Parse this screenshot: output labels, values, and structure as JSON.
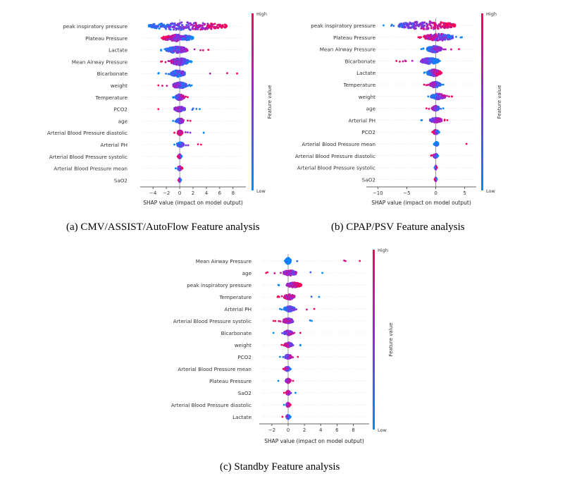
{
  "colors": {
    "high": "#ff0052",
    "low": "#008bfb",
    "mid": "#8a2be2",
    "axis": "#333333",
    "zero": "#999999"
  },
  "chart_data": [
    {
      "type": "scatter",
      "subtype": "shap-beeswarm",
      "caption": "(a)  CMV/ASSIST/AutoFlow Feature analysis",
      "xlabel": "SHAP value (impact on model output)",
      "xticks": [
        -4,
        -2,
        0,
        2,
        4,
        6,
        8
      ],
      "xtick_labels": [
        "−4",
        "−2",
        "0",
        "2",
        "4",
        "6",
        "8"
      ],
      "xlim": [
        -5.5,
        9.5
      ],
      "colorbar": {
        "label": "Feature value",
        "high": "High",
        "low": "Low"
      },
      "features": [
        {
          "name": "peak inspiratory pressure",
          "min": -4.6,
          "max": 7.0,
          "core": [
            -4.6,
            7.0
          ],
          "density": 2.2
        },
        {
          "name": "Plateau Pressure",
          "min": -2.7,
          "max": 2.0,
          "core": [
            -2.5,
            2.0
          ],
          "density": 1.6
        },
        {
          "name": "Lactate",
          "min": -2.8,
          "max": 4.3,
          "core": [
            -2.0,
            1.2
          ],
          "density": 1.5
        },
        {
          "name": "Mean Airway Pressure",
          "min": -2.8,
          "max": 1.8,
          "core": [
            -1.3,
            1.3
          ],
          "density": 1.8
        },
        {
          "name": "Bicarbonate",
          "min": -3.2,
          "max": 8.6,
          "core": [
            -1.3,
            0.8
          ],
          "density": 1.6
        },
        {
          "name": "weight",
          "min": -3.2,
          "max": 1.8,
          "core": [
            -1.0,
            1.0
          ],
          "density": 1.4
        },
        {
          "name": "Temperature",
          "min": -1.0,
          "max": 1.2,
          "core": [
            -0.6,
            0.6
          ],
          "density": 1.2
        },
        {
          "name": "PCO2",
          "min": -3.2,
          "max": 3.0,
          "core": [
            -0.8,
            0.8
          ],
          "density": 0.8
        },
        {
          "name": "age",
          "min": -1.0,
          "max": 1.6,
          "core": [
            -0.5,
            0.6
          ],
          "density": 0.8
        },
        {
          "name": "Arterial Blood Pressure diastolic",
          "min": -0.8,
          "max": 3.6,
          "core": [
            -0.3,
            0.4
          ],
          "density": 0.7
        },
        {
          "name": "Arterial PH",
          "min": -0.8,
          "max": 3.2,
          "core": [
            -0.4,
            0.6
          ],
          "density": 0.7
        },
        {
          "name": "Arterial Blood Pressure systolic",
          "min": -0.3,
          "max": 0.3,
          "core": [
            -0.2,
            0.2
          ],
          "density": 0.4
        },
        {
          "name": "Arterial Blood Pressure mean",
          "min": -0.6,
          "max": 0.4,
          "core": [
            -0.3,
            0.3
          ],
          "density": 0.4
        },
        {
          "name": "SaO2",
          "min": -0.2,
          "max": 0.2,
          "core": [
            -0.1,
            0.1
          ],
          "density": 0.3
        }
      ]
    },
    {
      "type": "scatter",
      "subtype": "shap-beeswarm",
      "caption": "(b)  CPAP/PSV Feature analysis",
      "xlabel": "SHAP value (impact on model output)",
      "xticks": [
        -10,
        -5,
        0,
        5
      ],
      "xtick_labels": [
        "−10",
        "−5",
        "0",
        "5"
      ],
      "xlim": [
        -11.5,
        6.5
      ],
      "colorbar": {
        "label": "Feature value",
        "high": "High",
        "low": "Low"
      },
      "features": [
        {
          "name": "peak inspiratory pressure",
          "min": -9.0,
          "max": 3.3,
          "core": [
            -6.5,
            3.3
          ],
          "density": 2.2
        },
        {
          "name": "Plateau Pressure",
          "min": -3.0,
          "max": 4.5,
          "core": [
            -2.0,
            3.0
          ],
          "density": 1.7
        },
        {
          "name": "Mean Airway Pressure",
          "min": -2.5,
          "max": 4.0,
          "core": [
            -1.5,
            1.0
          ],
          "density": 1.5
        },
        {
          "name": "Bicarbonate",
          "min": -6.8,
          "max": 0.7,
          "core": [
            -2.5,
            0.5
          ],
          "density": 1.4
        },
        {
          "name": "Lactate",
          "min": -2.0,
          "max": 1.0,
          "core": [
            -1.5,
            0.8
          ],
          "density": 1.6
        },
        {
          "name": "Temperature",
          "min": -2.0,
          "max": 1.3,
          "core": [
            -1.0,
            0.8
          ],
          "density": 1.1
        },
        {
          "name": "weight",
          "min": -1.3,
          "max": 2.8,
          "core": [
            -0.8,
            1.6
          ],
          "density": 1.1
        },
        {
          "name": "age",
          "min": -1.6,
          "max": 1.3,
          "core": [
            -0.6,
            0.6
          ],
          "density": 0.8
        },
        {
          "name": "Arterial PH",
          "min": -2.5,
          "max": 2.0,
          "core": [
            -1.0,
            1.0
          ],
          "density": 0.8
        },
        {
          "name": "PCO2",
          "min": -0.6,
          "max": 0.6,
          "core": [
            -0.4,
            0.4
          ],
          "density": 0.7
        },
        {
          "name": "Arterial Blood Pressure mean",
          "min": -0.3,
          "max": 5.3,
          "core": [
            -0.2,
            0.4
          ],
          "density": 0.5
        },
        {
          "name": "Arterial Blood Pressure diastolic",
          "min": -0.8,
          "max": 0.4,
          "core": [
            -0.4,
            0.3
          ],
          "density": 0.5
        },
        {
          "name": "Arterial Blood Pressure systolic",
          "min": -0.2,
          "max": 0.2,
          "core": [
            -0.1,
            0.1
          ],
          "density": 0.3
        },
        {
          "name": "SaO2",
          "min": -0.2,
          "max": 0.2,
          "core": [
            -0.1,
            0.1
          ],
          "density": 0.3
        }
      ]
    },
    {
      "type": "scatter",
      "subtype": "shap-beeswarm",
      "caption": "(c)  Standby Feature analysis",
      "xlabel": "SHAP value (impact on model output)",
      "xticks": [
        -2,
        0,
        2,
        4,
        6,
        8
      ],
      "xtick_labels": [
        "−2",
        "0",
        "2",
        "4",
        "6",
        "8"
      ],
      "xlim": [
        -3.2,
        9.6
      ],
      "colorbar": {
        "label": "Feature value",
        "high": "High",
        "low": "Low"
      },
      "features": [
        {
          "name": "Mean Airway Pressure",
          "min": -0.4,
          "max": 8.8,
          "core": [
            -0.3,
            0.3
          ],
          "density": 1.3
        },
        {
          "name": "age",
          "min": -2.7,
          "max": 4.2,
          "core": [
            -0.6,
            1.0
          ],
          "density": 1.0
        },
        {
          "name": "peak inspiratory pressure",
          "min": -1.2,
          "max": 1.6,
          "core": [
            -0.2,
            1.6
          ],
          "density": 0.8
        },
        {
          "name": "Temperature",
          "min": -1.3,
          "max": 3.8,
          "core": [
            -0.5,
            0.8
          ],
          "density": 0.9
        },
        {
          "name": "Arterial PH",
          "min": -1.0,
          "max": 3.2,
          "core": [
            -0.5,
            0.8
          ],
          "density": 0.9
        },
        {
          "name": "Arterial Blood Pressure systolic",
          "min": -1.8,
          "max": 2.9,
          "core": [
            -0.6,
            0.6
          ],
          "density": 0.9
        },
        {
          "name": "Bicarbonate",
          "min": -1.8,
          "max": 1.5,
          "core": [
            -0.5,
            0.5
          ],
          "density": 0.8
        },
        {
          "name": "weight",
          "min": -0.8,
          "max": 1.5,
          "core": [
            -0.4,
            0.5
          ],
          "density": 0.7
        },
        {
          "name": "PCO2",
          "min": -1.0,
          "max": 1.2,
          "core": [
            -0.4,
            0.4
          ],
          "density": 0.6
        },
        {
          "name": "Arterial Blood Pressure mean",
          "min": -0.6,
          "max": 0.3,
          "core": [
            -0.4,
            0.2
          ],
          "density": 0.6
        },
        {
          "name": "Plateau Pressure",
          "min": -1.2,
          "max": 0.6,
          "core": [
            -0.3,
            0.3
          ],
          "density": 0.5
        },
        {
          "name": "SaO2",
          "min": -0.5,
          "max": 0.9,
          "core": [
            -0.2,
            0.2
          ],
          "density": 0.5
        },
        {
          "name": "Arterial Blood Pressure diastolic",
          "min": -0.5,
          "max": 0.3,
          "core": [
            -0.2,
            0.2
          ],
          "density": 0.5
        },
        {
          "name": "Lactate",
          "min": -0.7,
          "max": 0.3,
          "core": [
            -0.2,
            0.2
          ],
          "density": 0.5
        }
      ]
    }
  ]
}
